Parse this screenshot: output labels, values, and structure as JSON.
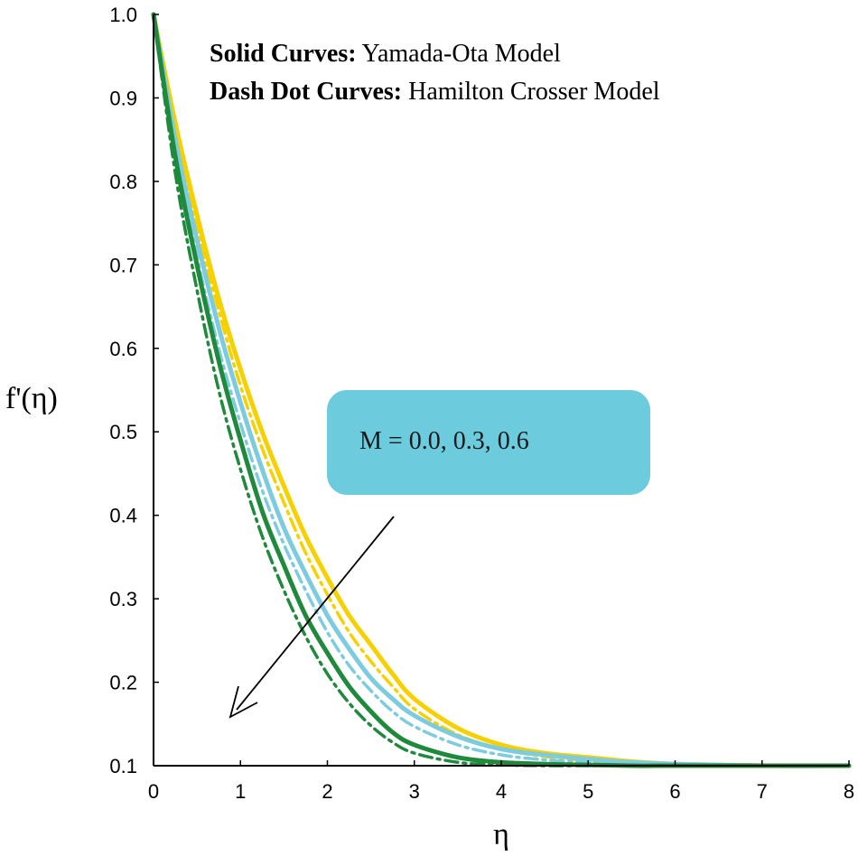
{
  "chart_data": {
    "type": "line",
    "xlabel": "η",
    "ylabel": "f'(η)",
    "xlim": [
      0,
      8
    ],
    "ylim": [
      0.1,
      1.0
    ],
    "x_ticks": [
      "0",
      "1",
      "2",
      "3",
      "4",
      "5",
      "6",
      "7",
      "8"
    ],
    "y_ticks": [
      "0.1",
      "0.2",
      "0.3",
      "0.4",
      "0.5",
      "0.6",
      "0.7",
      "0.8",
      "0.9",
      "1.0"
    ],
    "grid": false,
    "legend_lines": [
      {
        "bold": "Solid Curves:",
        "text": " Yamada-Ota Model"
      },
      {
        "bold": "Dash Dot Curves:",
        "text": " Hamilton Crosser Model"
      }
    ],
    "annotation": {
      "text": "M = 0.0, 0.3, 0.6",
      "color": "#6ccbdc"
    },
    "x": [
      0,
      0.25,
      0.5,
      0.75,
      1,
      1.25,
      1.5,
      1.75,
      2,
      2.25,
      2.5,
      2.75,
      3,
      3.5,
      4,
      4.5,
      5,
      5.5,
      6,
      7,
      8
    ],
    "series": [
      {
        "style": "solid",
        "color": "#f6d000",
        "values": [
          1.0,
          0.87,
          0.76,
          0.66,
          0.575,
          0.5,
          0.435,
          0.375,
          0.325,
          0.28,
          0.245,
          0.21,
          0.18,
          0.145,
          0.125,
          0.115,
          0.11,
          0.105,
          0.102,
          0.1,
          0.1
        ]
      },
      {
        "style": "solid",
        "color": "#7ccbdf",
        "values": [
          1.0,
          0.85,
          0.73,
          0.625,
          0.535,
          0.455,
          0.385,
          0.33,
          0.28,
          0.24,
          0.205,
          0.18,
          0.16,
          0.135,
          0.12,
          0.113,
          0.108,
          0.104,
          0.102,
          0.1,
          0.1
        ]
      },
      {
        "style": "solid",
        "color": "#1f8a3c",
        "values": [
          1.0,
          0.83,
          0.7,
          0.585,
          0.49,
          0.405,
          0.34,
          0.28,
          0.235,
          0.195,
          0.165,
          0.14,
          0.125,
          0.11,
          0.104,
          0.102,
          0.101,
          0.1,
          0.1,
          0.1,
          0.1
        ]
      },
      {
        "style": "dashdot",
        "color": "#f6d000",
        "values": [
          1.0,
          0.86,
          0.745,
          0.645,
          0.555,
          0.48,
          0.415,
          0.355,
          0.305,
          0.26,
          0.225,
          0.195,
          0.168,
          0.137,
          0.12,
          0.111,
          0.106,
          0.103,
          0.101,
          0.1,
          0.1
        ]
      },
      {
        "style": "dashdot",
        "color": "#7ccbdf",
        "values": [
          1.0,
          0.84,
          0.71,
          0.6,
          0.51,
          0.43,
          0.365,
          0.31,
          0.26,
          0.22,
          0.19,
          0.165,
          0.147,
          0.125,
          0.113,
          0.107,
          0.104,
          0.102,
          0.101,
          0.1,
          0.1
        ]
      },
      {
        "style": "dashdot",
        "color": "#1f8a3c",
        "values": [
          1.0,
          0.81,
          0.67,
          0.55,
          0.455,
          0.375,
          0.31,
          0.255,
          0.21,
          0.175,
          0.148,
          0.128,
          0.115,
          0.104,
          0.101,
          0.1,
          0.1,
          0.1,
          0.1,
          0.1,
          0.1
        ]
      }
    ]
  }
}
